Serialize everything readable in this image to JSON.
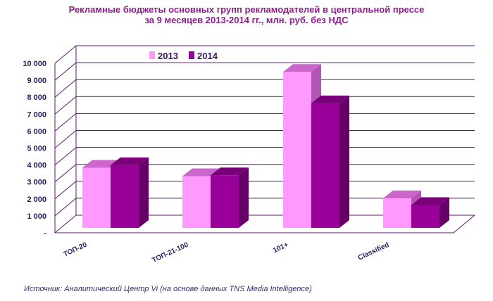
{
  "chart_data": {
    "type": "bar",
    "title_line1": "Рекламные бюджеты основных групп рекламодателей в центральной прессе",
    "title_line2": "за 9 месяцев 2013-2014 гг., млн. руб. без НДС",
    "categories": [
      "ТОП-20",
      "ТОП-21-100",
      "101+",
      "Classified"
    ],
    "series": [
      {
        "name": "2013",
        "values": [
          3550,
          3050,
          9200,
          1750
        ]
      },
      {
        "name": "2014",
        "values": [
          3700,
          3100,
          7350,
          1350
        ]
      }
    ],
    "ylim": [
      0,
      10000
    ],
    "yticks": [
      0,
      1000,
      2000,
      3000,
      4000,
      5000,
      6000,
      7000,
      8000,
      9000,
      10000
    ],
    "ytick_labels": [
      "-",
      "1 000",
      "2 000",
      "3 000",
      "4 000",
      "5 000",
      "6 000",
      "7 000",
      "8 000",
      "9 000",
      "10 000"
    ],
    "legend_position": "top-left",
    "grid": true,
    "colors": {
      "2013": "#ff99ff",
      "2014": "#990099",
      "grid": "#5a1a6a",
      "title": "#8b1f8b"
    }
  },
  "source_note": "Источник: Аналитический Центр Vi (на основе данных TNS Media Intelligence)"
}
